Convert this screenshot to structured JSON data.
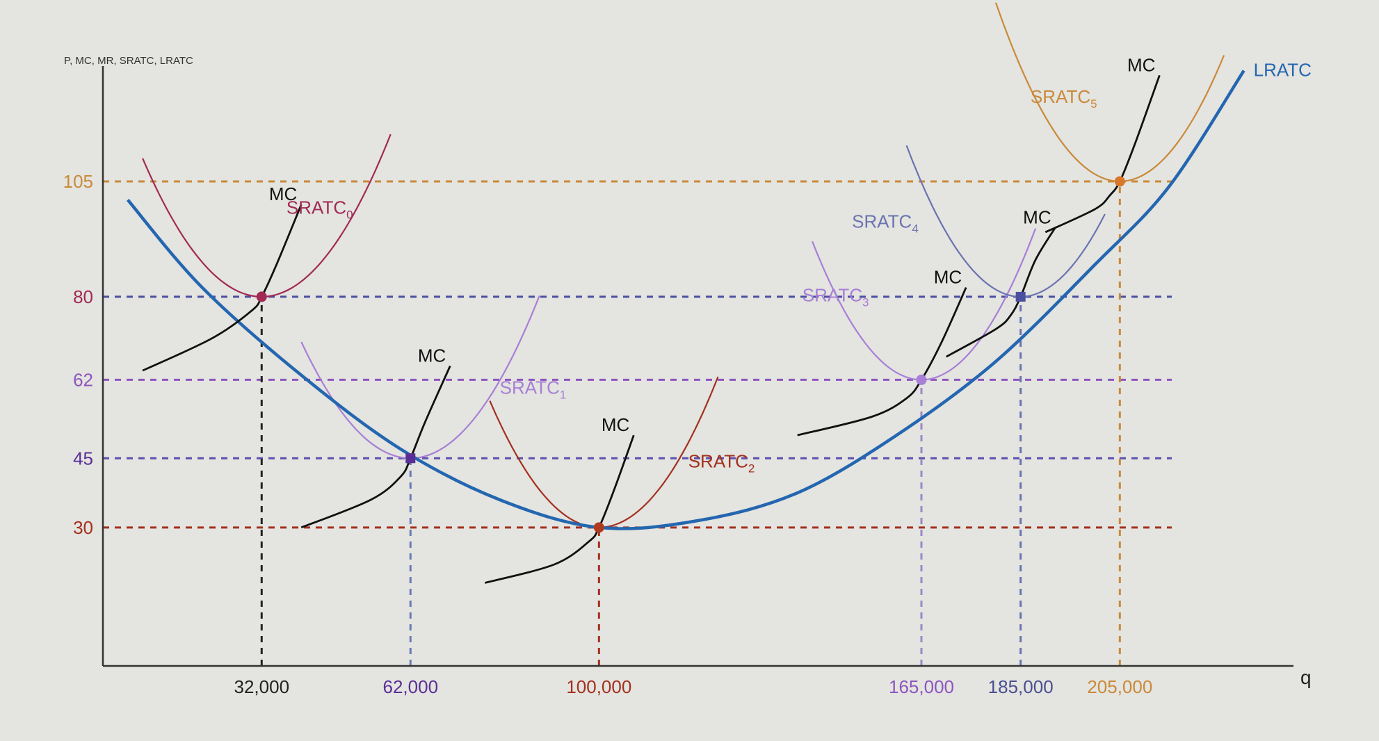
{
  "chart_data": {
    "type": "line",
    "title": "",
    "ylabel": "P, MC, MR, SRATC, LRATC",
    "xlabel": "q",
    "xlim": [
      0,
      240000
    ],
    "ylim": [
      0,
      130
    ],
    "y_ticks": [
      {
        "value": 105,
        "label": "105",
        "color": "#c98a3a"
      },
      {
        "value": 80,
        "label": "80",
        "color": "#a12a55"
      },
      {
        "value": 62,
        "label": "62",
        "color": "#8d55c0"
      },
      {
        "value": 45,
        "label": "45",
        "color": "#5a2f95"
      },
      {
        "value": 30,
        "label": "30",
        "color": "#a3301e"
      }
    ],
    "x_ticks": [
      {
        "value": 32000,
        "label": "32,000",
        "color": "#222222"
      },
      {
        "value": 62000,
        "label": "62,000",
        "color": "#5a2f95"
      },
      {
        "value": 100000,
        "label": "100,000",
        "color": "#a3301e"
      },
      {
        "value": 165000,
        "label": "165,000",
        "color": "#8d55c0"
      },
      {
        "value": 185000,
        "label": "185,000",
        "color": "#4a4f8f"
      },
      {
        "value": 205000,
        "label": "205,000",
        "color": "#c98a3a"
      }
    ],
    "lratc": {
      "name": "LRATC",
      "color": "#2466b0",
      "x": [
        5000,
        20000,
        40000,
        60000,
        80000,
        100000,
        120000,
        140000,
        160000,
        180000,
        200000,
        215000,
        230000
      ],
      "y": [
        101,
        82,
        63,
        47,
        36,
        30,
        31.5,
        37.5,
        50,
        66,
        87,
        104,
        129
      ]
    },
    "srac_curves": [
      {
        "name": "SRATC",
        "sub": "0",
        "color": "#a12a55",
        "min_q": 32000,
        "min_cost": 80,
        "q": [
          8000,
          58000
        ],
        "width": 24000
      },
      {
        "name": "SRATC",
        "sub": "1",
        "color": "#a77fd6",
        "min_q": 62000,
        "min_cost": 45,
        "q": [
          40000,
          88000
        ],
        "width": 24000
      },
      {
        "name": "SRATC",
        "sub": "2",
        "color": "#a3301e",
        "min_q": 100000,
        "min_cost": 30,
        "q": [
          78000,
          124000
        ],
        "width": 23000
      },
      {
        "name": "SRATC",
        "sub": "3",
        "color": "#a77fd6",
        "min_q": 165000,
        "min_cost": 62,
        "q": [
          143000,
          188000
        ],
        "width": 22000
      },
      {
        "name": "SRATC",
        "sub": "4",
        "color": "#6a74b0",
        "min_q": 185000,
        "min_cost": 80,
        "q": [
          162000,
          202000
        ],
        "width": 22000
      },
      {
        "name": "SRATC",
        "sub": "5",
        "color": "#c98a3a",
        "min_q": 205000,
        "min_cost": 105,
        "q": [
          180000,
          226000
        ],
        "width": 22000
      }
    ],
    "mc_curves": [
      {
        "name": "MC",
        "x": [
          8000,
          22000,
          30000,
          32000,
          35000,
          40000
        ],
        "y": [
          64,
          71,
          77,
          80,
          87,
          100
        ]
      },
      {
        "name": "MC",
        "x": [
          40000,
          54000,
          60000,
          62000,
          65000,
          70000
        ],
        "y": [
          30,
          36,
          41,
          45,
          53,
          65
        ]
      },
      {
        "name": "MC",
        "x": [
          77000,
          91000,
          98000,
          100000,
          103000,
          107000
        ],
        "y": [
          18,
          22,
          27,
          30,
          38,
          50
        ]
      },
      {
        "name": "MC",
        "x": [
          140000,
          155000,
          162000,
          165000,
          169000,
          174000
        ],
        "y": [
          50,
          54,
          58,
          62,
          70,
          82
        ]
      },
      {
        "name": "MC",
        "x": [
          170000,
          180000,
          183000,
          185000,
          188000,
          192000
        ],
        "y": [
          67,
          73,
          76,
          80,
          88,
          95
        ]
      },
      {
        "name": "MC",
        "x": [
          190000,
          200000,
          203000,
          205000,
          208000,
          213000
        ],
        "y": [
          94,
          99,
          102,
          105,
          113,
          128
        ]
      }
    ],
    "equilibria": [
      {
        "q": 32000,
        "p": 80,
        "color": "#a12a55",
        "shape": "circle"
      },
      {
        "q": 62000,
        "p": 45,
        "color": "#5a2f95",
        "shape": "square"
      },
      {
        "q": 100000,
        "p": 30,
        "color": "#b03a1e",
        "shape": "circle"
      },
      {
        "q": 165000,
        "p": 62,
        "color": "#a77fd6",
        "shape": "circle"
      },
      {
        "q": 185000,
        "p": 80,
        "color": "#4a4f9f",
        "shape": "square"
      },
      {
        "q": 205000,
        "p": 105,
        "color": "#d9772a",
        "shape": "circle"
      }
    ],
    "guide_lines": [
      {
        "axis": "h",
        "value": 105,
        "color": "#c98a3a"
      },
      {
        "axis": "h",
        "value": 80,
        "color": "#4a4fa0"
      },
      {
        "axis": "h",
        "value": 62,
        "color": "#8d55c0"
      },
      {
        "axis": "h",
        "value": 45,
        "color": "#5a4fb0"
      },
      {
        "axis": "h",
        "value": 30,
        "color": "#a3301e"
      },
      {
        "axis": "v",
        "value": 32000,
        "color": "#222222"
      },
      {
        "axis": "v",
        "value": 62000,
        "color": "#6a7ab5"
      },
      {
        "axis": "v",
        "value": 100000,
        "color": "#a3301e"
      },
      {
        "axis": "v",
        "value": 165000,
        "color": "#9a88c8"
      },
      {
        "axis": "v",
        "value": 185000,
        "color": "#6a74b0"
      },
      {
        "axis": "v",
        "value": 205000,
        "color": "#c98a3a"
      }
    ]
  }
}
